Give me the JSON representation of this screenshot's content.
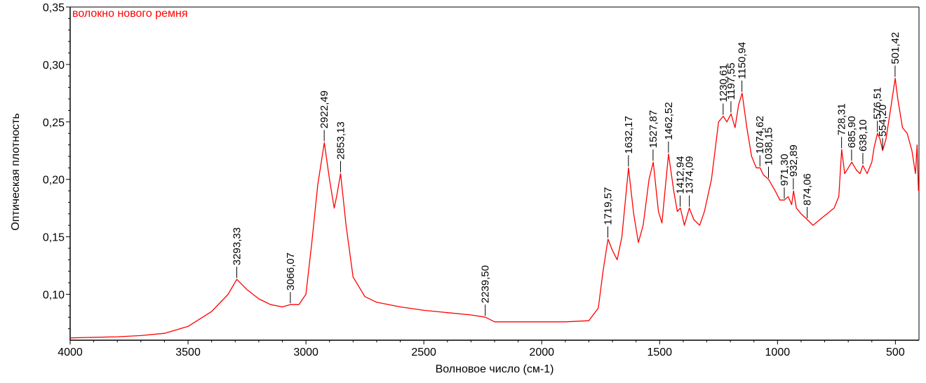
{
  "chart_data": {
    "type": "line",
    "legend": "волокно нового ремня",
    "xlabel": "Волновое число (см-1)",
    "ylabel": "Оптическая плотность",
    "xlim": [
      4000,
      400
    ],
    "ylim": [
      0.06,
      0.35
    ],
    "x_reversed": true,
    "grid": false,
    "line_color": "#ff0000",
    "x_ticks": [
      {
        "value": 4000,
        "label": "4000"
      },
      {
        "value": 3500,
        "label": "3500"
      },
      {
        "value": 3000,
        "label": "3000"
      },
      {
        "value": 2500,
        "label": "2500"
      },
      {
        "value": 2000,
        "label": "2000"
      },
      {
        "value": 1500,
        "label": "1500"
      },
      {
        "value": 1000,
        "label": "1000"
      },
      {
        "value": 500,
        "label": "500"
      }
    ],
    "y_ticks": [
      {
        "value": 0.35,
        "label": "0,35"
      },
      {
        "value": 0.3,
        "label": "0,30"
      },
      {
        "value": 0.25,
        "label": "0,25"
      },
      {
        "value": 0.2,
        "label": "0,20"
      },
      {
        "value": 0.15,
        "label": "0,15"
      },
      {
        "value": 0.1,
        "label": "0,10"
      }
    ],
    "series": [
      {
        "points": [
          [
            4000,
            0.062
          ],
          [
            3800,
            0.063
          ],
          [
            3700,
            0.064
          ],
          [
            3600,
            0.066
          ],
          [
            3500,
            0.072
          ],
          [
            3400,
            0.085
          ],
          [
            3330,
            0.1
          ],
          [
            3293,
            0.113
          ],
          [
            3250,
            0.104
          ],
          [
            3200,
            0.096
          ],
          [
            3150,
            0.091
          ],
          [
            3100,
            0.089
          ],
          [
            3066,
            0.091
          ],
          [
            3030,
            0.091
          ],
          [
            3000,
            0.1
          ],
          [
            2975,
            0.145
          ],
          [
            2950,
            0.195
          ],
          [
            2922,
            0.232
          ],
          [
            2900,
            0.2
          ],
          [
            2880,
            0.175
          ],
          [
            2870,
            0.185
          ],
          [
            2853,
            0.205
          ],
          [
            2830,
            0.16
          ],
          [
            2800,
            0.115
          ],
          [
            2750,
            0.098
          ],
          [
            2700,
            0.093
          ],
          [
            2600,
            0.089
          ],
          [
            2500,
            0.086
          ],
          [
            2400,
            0.084
          ],
          [
            2300,
            0.082
          ],
          [
            2239,
            0.08
          ],
          [
            2200,
            0.076
          ],
          [
            2100,
            0.076
          ],
          [
            2000,
            0.076
          ],
          [
            1900,
            0.076
          ],
          [
            1800,
            0.077
          ],
          [
            1760,
            0.088
          ],
          [
            1740,
            0.12
          ],
          [
            1719,
            0.148
          ],
          [
            1700,
            0.138
          ],
          [
            1680,
            0.13
          ],
          [
            1660,
            0.15
          ],
          [
            1632,
            0.21
          ],
          [
            1610,
            0.17
          ],
          [
            1590,
            0.145
          ],
          [
            1570,
            0.16
          ],
          [
            1545,
            0.2
          ],
          [
            1527,
            0.215
          ],
          [
            1505,
            0.172
          ],
          [
            1490,
            0.162
          ],
          [
            1475,
            0.195
          ],
          [
            1462,
            0.222
          ],
          [
            1440,
            0.19
          ],
          [
            1425,
            0.172
          ],
          [
            1412,
            0.175
          ],
          [
            1395,
            0.16
          ],
          [
            1374,
            0.175
          ],
          [
            1355,
            0.165
          ],
          [
            1330,
            0.16
          ],
          [
            1310,
            0.172
          ],
          [
            1280,
            0.2
          ],
          [
            1250,
            0.25
          ],
          [
            1230,
            0.255
          ],
          [
            1215,
            0.25
          ],
          [
            1197,
            0.257
          ],
          [
            1180,
            0.245
          ],
          [
            1165,
            0.265
          ],
          [
            1150,
            0.275
          ],
          [
            1130,
            0.245
          ],
          [
            1110,
            0.22
          ],
          [
            1090,
            0.21
          ],
          [
            1074,
            0.21
          ],
          [
            1060,
            0.204
          ],
          [
            1038,
            0.2
          ],
          [
            1010,
            0.19
          ],
          [
            990,
            0.182
          ],
          [
            971,
            0.182
          ],
          [
            955,
            0.185
          ],
          [
            940,
            0.178
          ],
          [
            932,
            0.19
          ],
          [
            920,
            0.175
          ],
          [
            900,
            0.17
          ],
          [
            874,
            0.165
          ],
          [
            850,
            0.16
          ],
          [
            820,
            0.165
          ],
          [
            790,
            0.17
          ],
          [
            760,
            0.175
          ],
          [
            740,
            0.185
          ],
          [
            728,
            0.226
          ],
          [
            715,
            0.205
          ],
          [
            700,
            0.21
          ],
          [
            685,
            0.215
          ],
          [
            665,
            0.208
          ],
          [
            650,
            0.205
          ],
          [
            638,
            0.212
          ],
          [
            620,
            0.205
          ],
          [
            600,
            0.215
          ],
          [
            590,
            0.228
          ],
          [
            576,
            0.24
          ],
          [
            565,
            0.235
          ],
          [
            554,
            0.225
          ],
          [
            540,
            0.235
          ],
          [
            525,
            0.255
          ],
          [
            501,
            0.288
          ],
          [
            490,
            0.27
          ],
          [
            470,
            0.245
          ],
          [
            450,
            0.24
          ],
          [
            430,
            0.225
          ],
          [
            415,
            0.205
          ],
          [
            408,
            0.23
          ],
          [
            402,
            0.19
          ]
        ]
      }
    ],
    "annotations": [
      {
        "x": 3293.33,
        "y": 0.113,
        "label": "3293,33"
      },
      {
        "x": 3066.07,
        "y": 0.091,
        "label": "3066,07"
      },
      {
        "x": 2922.49,
        "y": 0.232,
        "label": "2922,49"
      },
      {
        "x": 2853.13,
        "y": 0.205,
        "label": "2853,13"
      },
      {
        "x": 2239.5,
        "y": 0.08,
        "label": "2239,50"
      },
      {
        "x": 1719.57,
        "y": 0.148,
        "label": "1719,57"
      },
      {
        "x": 1632.17,
        "y": 0.21,
        "label": "1632,17"
      },
      {
        "x": 1527.87,
        "y": 0.215,
        "label": "1527,87"
      },
      {
        "x": 1462.52,
        "y": 0.222,
        "label": "1462,52"
      },
      {
        "x": 1412.94,
        "y": 0.175,
        "label": "1412,94"
      },
      {
        "x": 1374.09,
        "y": 0.175,
        "label": "1374,09"
      },
      {
        "x": 1230.61,
        "y": 0.255,
        "label": "1230,61"
      },
      {
        "x": 1197.55,
        "y": 0.257,
        "label": "1197,55"
      },
      {
        "x": 1150.94,
        "y": 0.275,
        "label": "1150,94"
      },
      {
        "x": 1074.62,
        "y": 0.21,
        "label": "1074,62"
      },
      {
        "x": 1038.15,
        "y": 0.2,
        "label": "1038,15"
      },
      {
        "x": 971.3,
        "y": 0.182,
        "label": "971,30"
      },
      {
        "x": 932.89,
        "y": 0.19,
        "label": "932,89"
      },
      {
        "x": 874.06,
        "y": 0.165,
        "label": "874,06"
      },
      {
        "x": 728.31,
        "y": 0.226,
        "label": "728,31"
      },
      {
        "x": 685.9,
        "y": 0.215,
        "label": "685,90"
      },
      {
        "x": 638.1,
        "y": 0.212,
        "label": "638,10"
      },
      {
        "x": 576.51,
        "y": 0.24,
        "label": "576,51"
      },
      {
        "x": 554.2,
        "y": 0.225,
        "label": "554,20"
      },
      {
        "x": 501.42,
        "y": 0.288,
        "label": "501,42"
      }
    ]
  }
}
